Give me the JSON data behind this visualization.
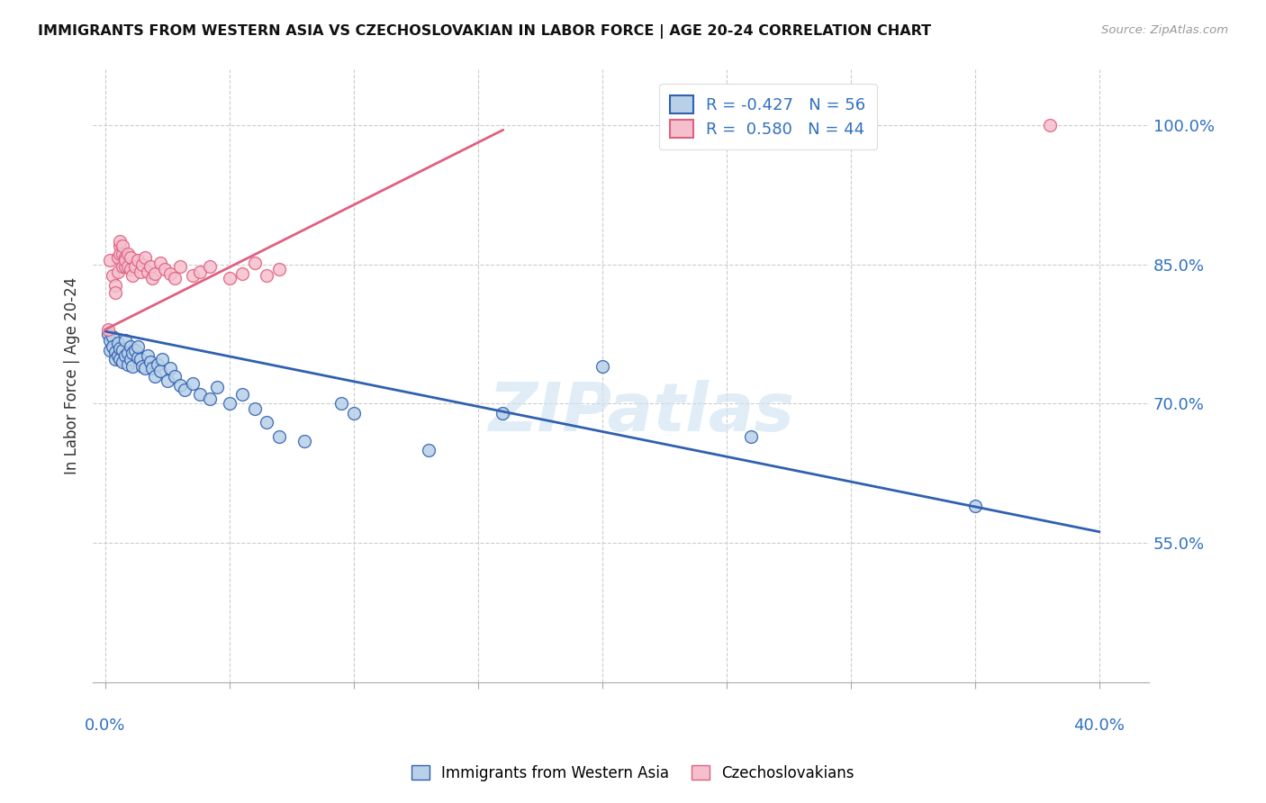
{
  "title": "IMMIGRANTS FROM WESTERN ASIA VS CZECHOSLOVAKIAN IN LABOR FORCE | AGE 20-24 CORRELATION CHART",
  "source": "Source: ZipAtlas.com",
  "ylabel": "In Labor Force | Age 20-24",
  "legend_blue": {
    "R": -0.427,
    "N": 56,
    "label": "Immigrants from Western Asia"
  },
  "legend_pink": {
    "R": 0.58,
    "N": 44,
    "label": "Czechoslovakians"
  },
  "blue_color": "#b8d0e8",
  "pink_color": "#f5c0ce",
  "blue_line_color": "#3060b0",
  "pink_line_color": "#e06080",
  "blue_scatter": [
    [
      0.001,
      0.775
    ],
    [
      0.002,
      0.768
    ],
    [
      0.002,
      0.758
    ],
    [
      0.003,
      0.772
    ],
    [
      0.003,
      0.762
    ],
    [
      0.004,
      0.756
    ],
    [
      0.004,
      0.748
    ],
    [
      0.005,
      0.765
    ],
    [
      0.005,
      0.752
    ],
    [
      0.006,
      0.76
    ],
    [
      0.006,
      0.748
    ],
    [
      0.007,
      0.758
    ],
    [
      0.007,
      0.745
    ],
    [
      0.008,
      0.768
    ],
    [
      0.008,
      0.752
    ],
    [
      0.009,
      0.755
    ],
    [
      0.009,
      0.742
    ],
    [
      0.01,
      0.762
    ],
    [
      0.01,
      0.748
    ],
    [
      0.011,
      0.755
    ],
    [
      0.011,
      0.74
    ],
    [
      0.012,
      0.758
    ],
    [
      0.013,
      0.75
    ],
    [
      0.013,
      0.762
    ],
    [
      0.014,
      0.748
    ],
    [
      0.015,
      0.74
    ],
    [
      0.016,
      0.738
    ],
    [
      0.017,
      0.752
    ],
    [
      0.018,
      0.745
    ],
    [
      0.019,
      0.738
    ],
    [
      0.02,
      0.73
    ],
    [
      0.021,
      0.742
    ],
    [
      0.022,
      0.735
    ],
    [
      0.023,
      0.748
    ],
    [
      0.025,
      0.725
    ],
    [
      0.026,
      0.738
    ],
    [
      0.028,
      0.73
    ],
    [
      0.03,
      0.72
    ],
    [
      0.032,
      0.715
    ],
    [
      0.035,
      0.722
    ],
    [
      0.038,
      0.71
    ],
    [
      0.042,
      0.705
    ],
    [
      0.045,
      0.718
    ],
    [
      0.05,
      0.7
    ],
    [
      0.055,
      0.71
    ],
    [
      0.06,
      0.695
    ],
    [
      0.065,
      0.68
    ],
    [
      0.07,
      0.665
    ],
    [
      0.08,
      0.66
    ],
    [
      0.095,
      0.7
    ],
    [
      0.1,
      0.69
    ],
    [
      0.13,
      0.65
    ],
    [
      0.16,
      0.69
    ],
    [
      0.2,
      0.74
    ],
    [
      0.26,
      0.665
    ],
    [
      0.35,
      0.59
    ]
  ],
  "pink_scatter": [
    [
      0.001,
      0.78
    ],
    [
      0.002,
      0.855
    ],
    [
      0.003,
      0.838
    ],
    [
      0.004,
      0.828
    ],
    [
      0.004,
      0.82
    ],
    [
      0.005,
      0.858
    ],
    [
      0.005,
      0.842
    ],
    [
      0.006,
      0.87
    ],
    [
      0.006,
      0.862
    ],
    [
      0.006,
      0.875
    ],
    [
      0.007,
      0.848
    ],
    [
      0.007,
      0.862
    ],
    [
      0.007,
      0.87
    ],
    [
      0.008,
      0.858
    ],
    [
      0.008,
      0.848
    ],
    [
      0.008,
      0.855
    ],
    [
      0.009,
      0.862
    ],
    [
      0.009,
      0.848
    ],
    [
      0.01,
      0.858
    ],
    [
      0.01,
      0.845
    ],
    [
      0.011,
      0.838
    ],
    [
      0.012,
      0.848
    ],
    [
      0.013,
      0.855
    ],
    [
      0.014,
      0.842
    ],
    [
      0.015,
      0.85
    ],
    [
      0.016,
      0.858
    ],
    [
      0.017,
      0.842
    ],
    [
      0.018,
      0.848
    ],
    [
      0.019,
      0.835
    ],
    [
      0.02,
      0.84
    ],
    [
      0.022,
      0.852
    ],
    [
      0.024,
      0.845
    ],
    [
      0.026,
      0.84
    ],
    [
      0.028,
      0.835
    ],
    [
      0.03,
      0.848
    ],
    [
      0.035,
      0.838
    ],
    [
      0.038,
      0.842
    ],
    [
      0.042,
      0.848
    ],
    [
      0.05,
      0.835
    ],
    [
      0.055,
      0.84
    ],
    [
      0.06,
      0.852
    ],
    [
      0.065,
      0.838
    ],
    [
      0.07,
      0.845
    ],
    [
      0.38,
      1.0
    ]
  ],
  "ylim": [
    0.4,
    1.06
  ],
  "xlim": [
    -0.005,
    0.42
  ],
  "yticks": [
    0.55,
    0.7,
    0.85,
    1.0
  ],
  "ytick_labels": [
    "55.0%",
    "70.0%",
    "85.0%",
    "100.0%"
  ],
  "xticks": [
    0.0,
    0.05,
    0.1,
    0.15,
    0.2,
    0.25,
    0.3,
    0.35,
    0.4
  ],
  "blue_trend": [
    0.0,
    0.4
  ],
  "blue_trend_y": [
    0.778,
    0.562
  ],
  "pink_trend_x": [
    0.0,
    0.16
  ],
  "pink_trend_y": [
    0.78,
    0.995
  ]
}
